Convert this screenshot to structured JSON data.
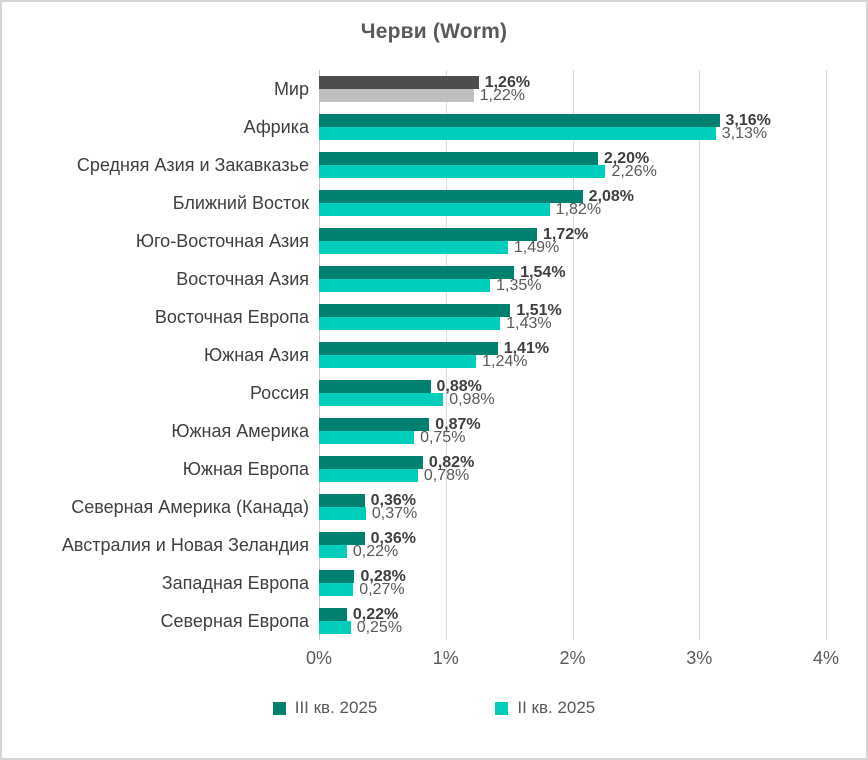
{
  "title": "Черви (Worm)",
  "axis": {
    "ticks": [
      "0%",
      "1%",
      "2%",
      "3%",
      "4%"
    ],
    "min": 0,
    "max": 4
  },
  "legend": {
    "items": [
      {
        "label": "III кв. 2025",
        "color": "#008170"
      },
      {
        "label": "II кв. 2025",
        "color": "#00CEBB"
      }
    ]
  },
  "colors": {
    "q3_teal": "#008170",
    "q2_teal": "#00CEBB",
    "world_q3_gray": "#4D4D4D",
    "world_q2_gray": "#BFBFBF",
    "gridline": "#D9D9D9",
    "text": "#595959"
  },
  "chart_data": {
    "type": "bar",
    "orientation": "horizontal",
    "title": "Черви (Worm)",
    "xlabel": "",
    "ylabel": "",
    "xlim": [
      0,
      4
    ],
    "x_tick_labels": [
      "0%",
      "1%",
      "2%",
      "3%",
      "4%"
    ],
    "grid": true,
    "legend_position": "bottom",
    "categories": [
      "Мир",
      "Африка",
      "Средняя Азия и Закавказье",
      "Ближний Восток",
      "Юго-Восточная Азия",
      "Восточная Азия",
      "Восточная Европа",
      "Южная Азия",
      "Россия",
      "Южная Америка",
      "Южная Европа",
      "Северная Америка (Канада)",
      "Австралия и Новая Зеландия",
      "Западная Европа",
      "Северная Европа"
    ],
    "series": [
      {
        "name": "III кв. 2025",
        "values": [
          1.26,
          3.16,
          2.2,
          2.08,
          1.72,
          1.54,
          1.51,
          1.41,
          0.88,
          0.87,
          0.82,
          0.36,
          0.36,
          0.28,
          0.22
        ],
        "labels": [
          "1,26%",
          "3,16%",
          "2,20%",
          "2,08%",
          "1,72%",
          "1,54%",
          "1,51%",
          "1,41%",
          "0,88%",
          "0,87%",
          "0,82%",
          "0,36%",
          "0,36%",
          "0,28%",
          "0,22%"
        ]
      },
      {
        "name": "II кв. 2025",
        "values": [
          1.22,
          3.13,
          2.26,
          1.82,
          1.49,
          1.35,
          1.43,
          1.24,
          0.98,
          0.75,
          0.78,
          0.37,
          0.22,
          0.27,
          0.25
        ],
        "labels": [
          "1,22%",
          "3,13%",
          "2,26%",
          "1,82%",
          "1,49%",
          "1,35%",
          "1,43%",
          "1,24%",
          "0,98%",
          "0,75%",
          "0,78%",
          "0,37%",
          "0,22%",
          "0,27%",
          "0,25%"
        ]
      }
    ],
    "world_row_uses_gray": true
  }
}
